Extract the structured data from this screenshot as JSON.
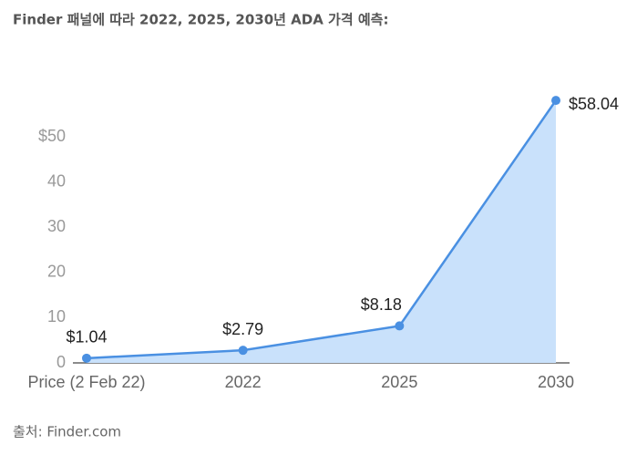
{
  "chart_data": {
    "type": "area",
    "title": "Finder 패널에 따라 2022, 2025, 2030년 ADA 가격 예측:",
    "source": "출처: Finder.com",
    "categories": [
      "Price (2 Feb 22)",
      "2022",
      "2025",
      "2030"
    ],
    "values": [
      1.04,
      2.79,
      8.18,
      58.04
    ],
    "value_labels": [
      "$1.04",
      "$2.79",
      "$8.18",
      "$58.04"
    ],
    "color": "#4a90e2",
    "area_color": "#c9e1fb",
    "ylim": [
      0,
      60
    ],
    "yticks": [
      0,
      10,
      20,
      30,
      40,
      {
        "value": 50,
        "label": "$50"
      }
    ],
    "grid": false
  }
}
